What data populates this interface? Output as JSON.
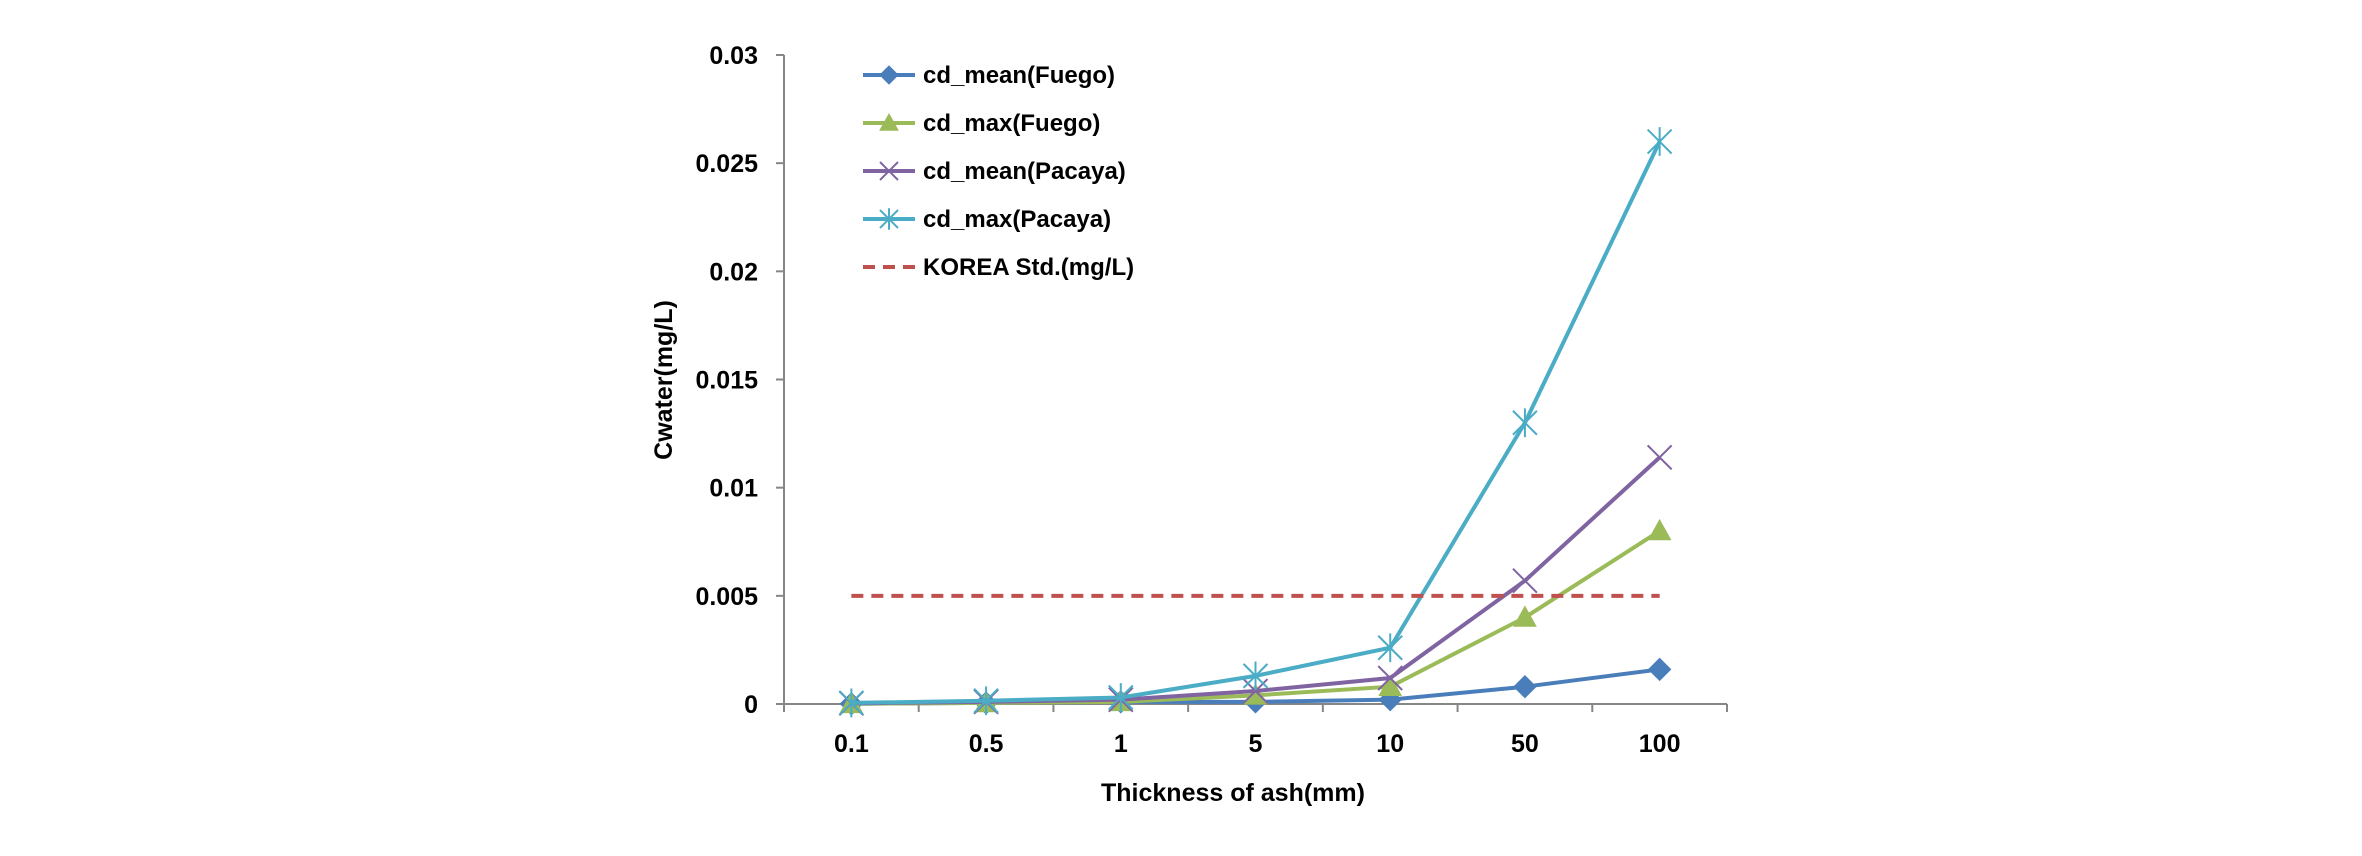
{
  "chart_data": {
    "type": "line",
    "categories": [
      "0.1",
      "0.5",
      "1",
      "5",
      "10",
      "50",
      "100"
    ],
    "xlabel": "Thickness of ash(mm)",
    "ylabel": "Cwater(mg/L)",
    "ylim": [
      0,
      0.03
    ],
    "yticks": [
      "0",
      "0.005",
      "0.01",
      "0.015",
      "0.02",
      "0.025",
      "0.03"
    ],
    "grid": false,
    "legend_position": "top-left",
    "series": [
      {
        "name": "cd_mean(Fuego)",
        "color": "#4a7ebb",
        "marker": "diamond",
        "dash": "solid",
        "values": [
          1e-05,
          5e-05,
          0.0001,
          0.0001,
          0.0002,
          0.0008,
          0.0016
        ]
      },
      {
        "name": "cd_max(Fuego)",
        "color": "#9bbb59",
        "marker": "triangle",
        "dash": "solid",
        "values": [
          1e-05,
          5e-05,
          0.0001,
          0.0004,
          0.0008,
          0.004,
          0.008
        ]
      },
      {
        "name": "cd_mean(Pacaya)",
        "color": "#8064a2",
        "marker": "x",
        "dash": "solid",
        "values": [
          3e-05,
          0.0001,
          0.0002,
          0.0006,
          0.0012,
          0.0057,
          0.0114
        ]
      },
      {
        "name": "cd_max(Pacaya)",
        "color": "#4bacc6",
        "marker": "star",
        "dash": "solid",
        "values": [
          5e-05,
          0.00015,
          0.0003,
          0.0013,
          0.0026,
          0.013,
          0.026
        ]
      },
      {
        "name": "KOREA Std.(mg/L)",
        "color": "#c0504d",
        "marker": "none",
        "dash": "dashed",
        "values": [
          0.005,
          0.005,
          0.005,
          0.005,
          0.005,
          0.005,
          0.005
        ]
      }
    ]
  }
}
